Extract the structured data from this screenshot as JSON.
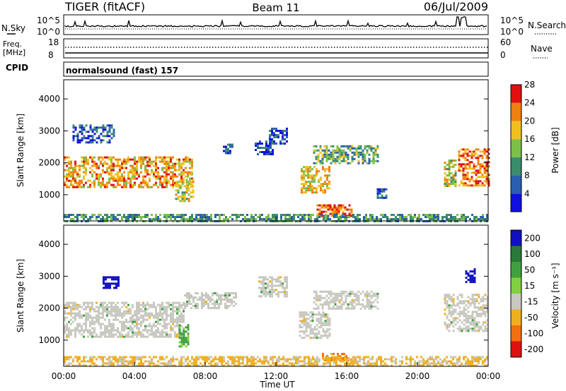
{
  "header": {
    "radar": "TIGER (fitACF)",
    "beam": "Beam 11",
    "date": "06/Jul/2009"
  },
  "strips": {
    "nsky_label": "N.Sky",
    "nsky_tick_top": "10^5",
    "nsky_tick_bottom": "10^0",
    "nsearch_label": "N.Search",
    "nsearch_tick_top": "10^5",
    "nsearch_tick_bottom": "10^0",
    "freq_label_1": "Freq.",
    "freq_label_2": "[MHz]",
    "freq_tick_top": "18",
    "freq_tick_bottom": "8",
    "nave_label": "Nave",
    "nave_tick_top": "60",
    "nave_tick_bottom": "0",
    "cpid_label": "CPID",
    "cpid_text": "normalsound (fast) 157"
  },
  "axes": {
    "ylabel": "Slant Range [km]",
    "xlabel": "Time UT",
    "xticks": [
      "00:00",
      "04:00",
      "08:00",
      "12:00",
      "16:00",
      "20:00",
      "00:00"
    ],
    "yticks": [
      "1000",
      "2000",
      "3000",
      "4000"
    ]
  },
  "colorbars": {
    "power_label": "Power [dB]",
    "power_ticks": [
      "4",
      "8",
      "12",
      "16",
      "20",
      "24",
      "28"
    ],
    "power_colors": [
      "#1010e0",
      "#2a5fb0",
      "#3a8c6a",
      "#7cc04a",
      "#f0c020",
      "#f08010",
      "#e01010"
    ],
    "velocity_label": "Velocity [m s⁻¹]",
    "velocity_ticks": [
      "200",
      "100",
      "50",
      "15",
      "-15",
      "-50",
      "-100",
      "-200"
    ],
    "velocity_colors": [
      "#1010c0",
      "#2a7a3a",
      "#40a040",
      "#80d040",
      "#c8c8c0",
      "#f0b020",
      "#f07010",
      "#e01010"
    ]
  },
  "chart_data": [
    {
      "type": "heatmap",
      "title": "Power",
      "x_range_hours": [
        0,
        24
      ],
      "y_range_km": [
        180,
        4600
      ],
      "colorbar_label": "Power [dB]",
      "regions": [
        {
          "t0": 0.0,
          "t1": 7.3,
          "r0": 1250,
          "r1": 2200,
          "value": 22
        },
        {
          "t0": 0.5,
          "t1": 2.8,
          "r0": 2650,
          "r1": 3200,
          "value": 8
        },
        {
          "t0": 6.3,
          "t1": 7.3,
          "r0": 800,
          "r1": 1500,
          "value": 18
        },
        {
          "t0": 9.0,
          "t1": 9.6,
          "r0": 2300,
          "r1": 2600,
          "value": 8
        },
        {
          "t0": 10.8,
          "t1": 11.8,
          "r0": 2300,
          "r1": 2700,
          "value": 8
        },
        {
          "t0": 11.6,
          "t1": 12.6,
          "r0": 2600,
          "r1": 3100,
          "value": 6
        },
        {
          "t0": 13.4,
          "t1": 15.0,
          "r0": 1100,
          "r1": 1900,
          "value": 20
        },
        {
          "t0": 14.3,
          "t1": 16.3,
          "r0": 350,
          "r1": 700,
          "value": 26
        },
        {
          "t0": 14.1,
          "t1": 17.8,
          "r0": 2000,
          "r1": 2550,
          "value": 14
        },
        {
          "t0": 17.7,
          "t1": 18.2,
          "r0": 900,
          "r1": 1200,
          "value": 8
        },
        {
          "t0": 21.5,
          "t1": 22.2,
          "r0": 1300,
          "r1": 2100,
          "value": 18
        },
        {
          "t0": 22.3,
          "t1": 24.0,
          "r0": 1300,
          "r1": 2450,
          "value": 24
        },
        {
          "t0": 0.0,
          "t1": 24.0,
          "r0": 200,
          "r1": 400,
          "value": 12
        }
      ]
    },
    {
      "type": "heatmap",
      "title": "Velocity",
      "x_range_hours": [
        0,
        24
      ],
      "y_range_km": [
        180,
        4600
      ],
      "colorbar_label": "Velocity [m s⁻¹]",
      "regions": [
        {
          "t0": 0.0,
          "t1": 6.8,
          "r0": 1100,
          "r1": 2200,
          "value": 0
        },
        {
          "t0": 2.2,
          "t1": 3.1,
          "r0": 2650,
          "r1": 3000,
          "value": 200
        },
        {
          "t0": 6.5,
          "t1": 7.0,
          "r0": 800,
          "r1": 1500,
          "value": 40
        },
        {
          "t0": 6.8,
          "t1": 9.8,
          "r0": 2000,
          "r1": 2500,
          "value": 0
        },
        {
          "t0": 11.0,
          "t1": 12.6,
          "r0": 2400,
          "r1": 3000,
          "value": 0
        },
        {
          "t0": 13.3,
          "t1": 15.0,
          "r0": 1100,
          "r1": 1900,
          "value": 0
        },
        {
          "t0": 14.6,
          "t1": 16.1,
          "r0": 350,
          "r1": 600,
          "value": -60
        },
        {
          "t0": 14.1,
          "t1": 17.8,
          "r0": 2000,
          "r1": 2550,
          "value": 0
        },
        {
          "t0": 21.5,
          "t1": 24.0,
          "r0": 1300,
          "r1": 2450,
          "value": 0
        },
        {
          "t0": 22.7,
          "t1": 23.2,
          "r0": 2850,
          "r1": 3250,
          "value": 200
        },
        {
          "t0": 0.0,
          "t1": 24.0,
          "r0": 200,
          "r1": 500,
          "value": -20
        }
      ]
    }
  ]
}
